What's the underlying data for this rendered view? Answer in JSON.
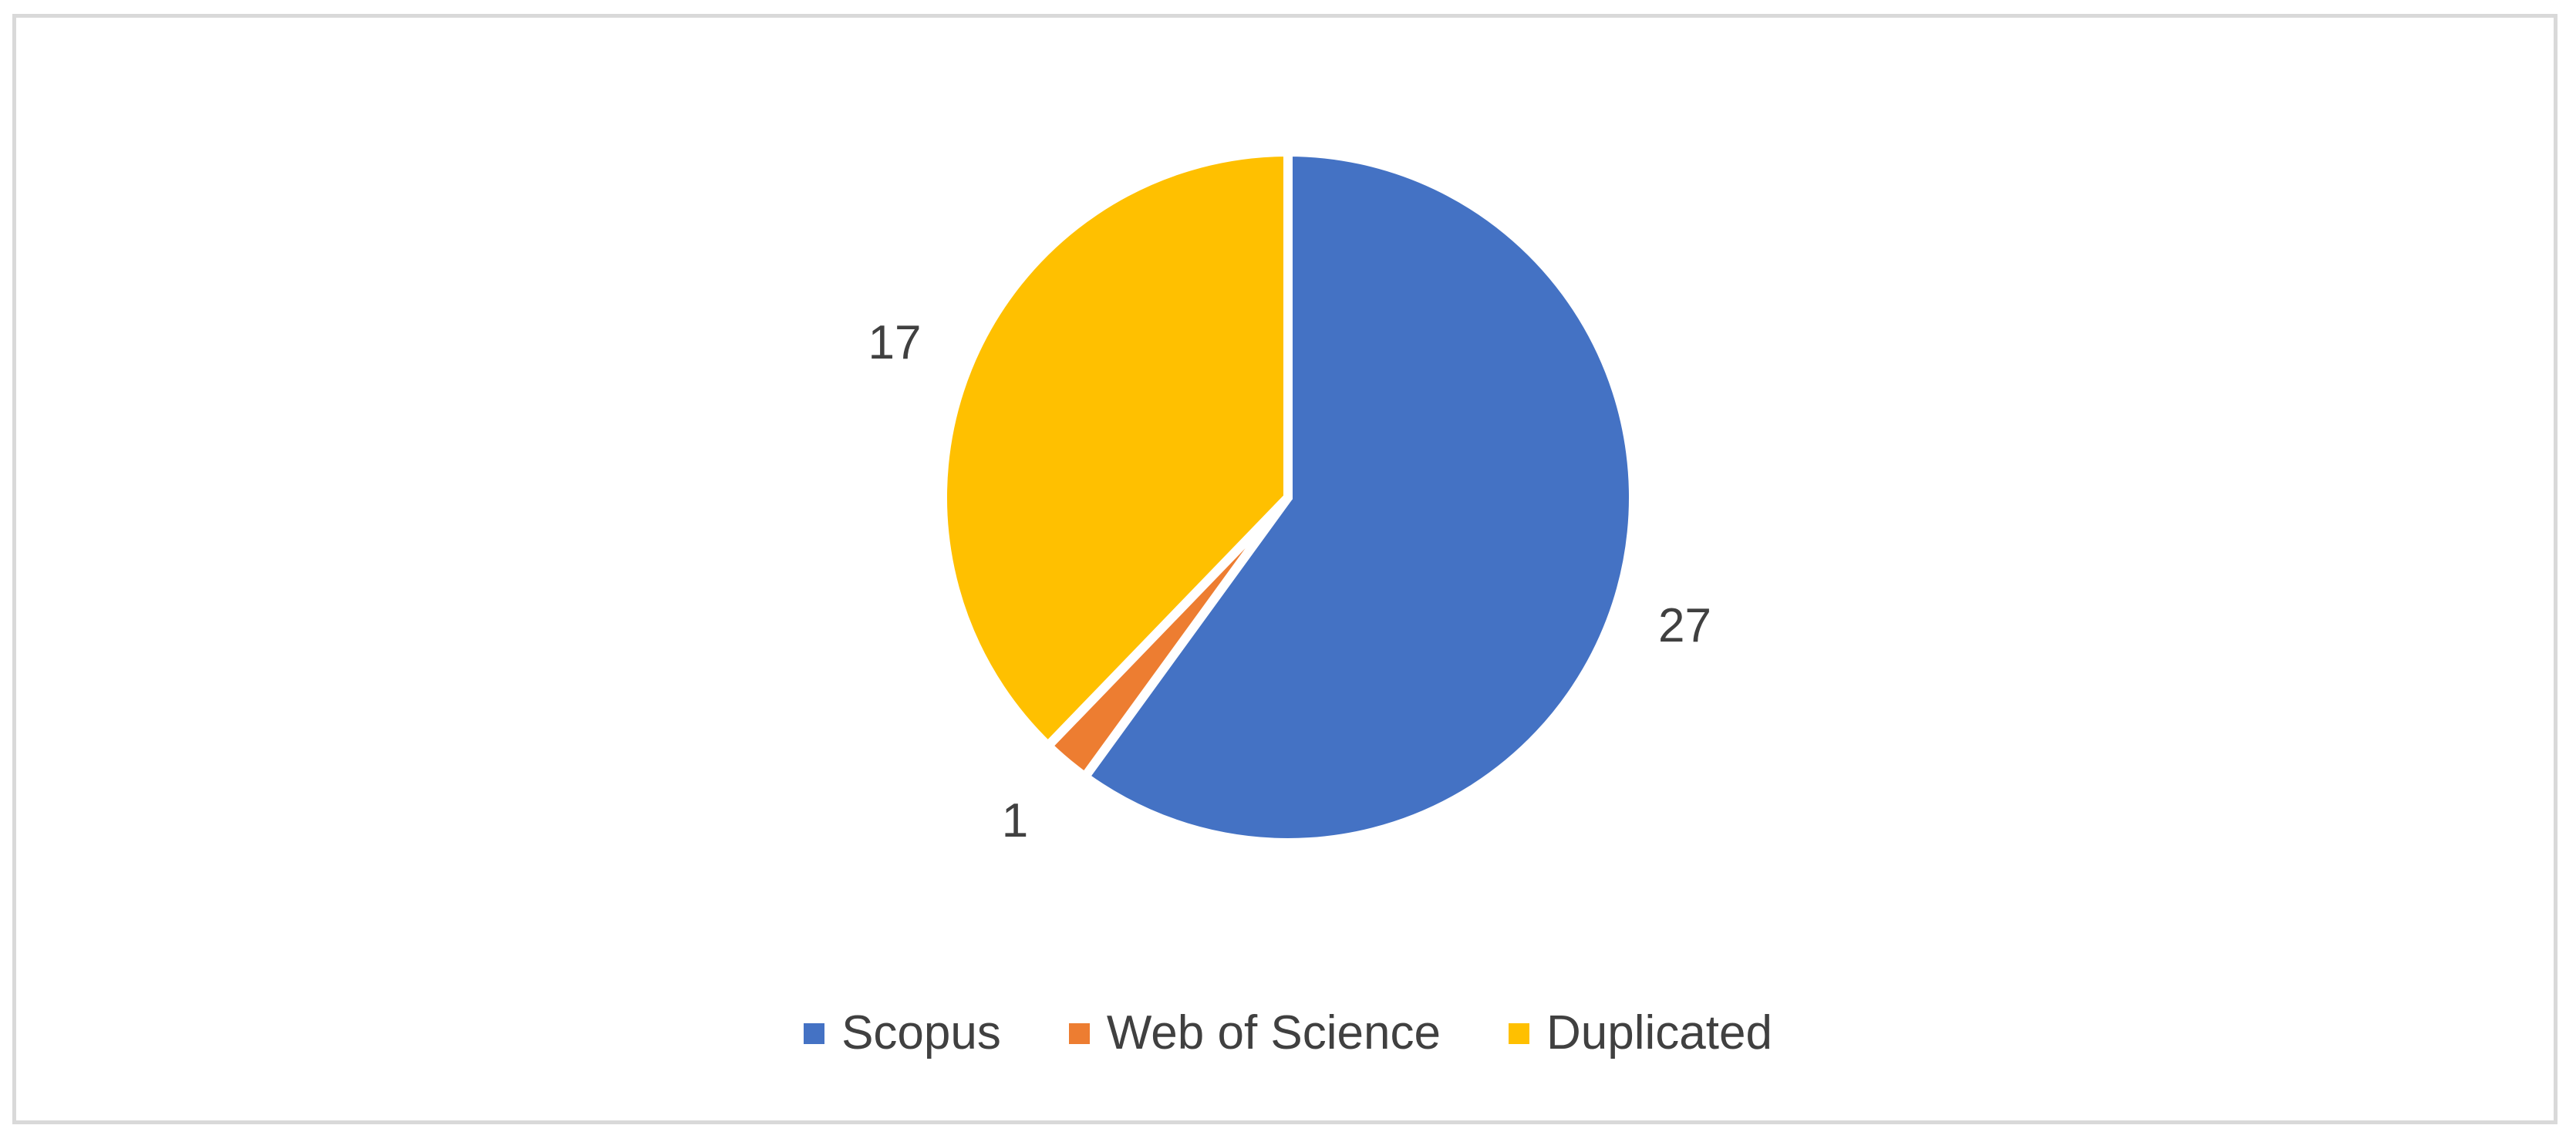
{
  "chart_data": {
    "type": "pie",
    "title": "",
    "categories": [
      "Scopus",
      "Web of Science",
      "Duplicated"
    ],
    "values": [
      27,
      1,
      17
    ],
    "colors": [
      "#4472C4",
      "#ED7D31",
      "#FFC000"
    ],
    "value_labels": [
      "27",
      "1",
      "17"
    ],
    "legend_position": "bottom"
  },
  "legend": {
    "items": [
      {
        "label": "Scopus",
        "color": "#4472C4"
      },
      {
        "label": "Web of Science",
        "color": "#ED7D31"
      },
      {
        "label": "Duplicated",
        "color": "#FFC000"
      }
    ]
  }
}
